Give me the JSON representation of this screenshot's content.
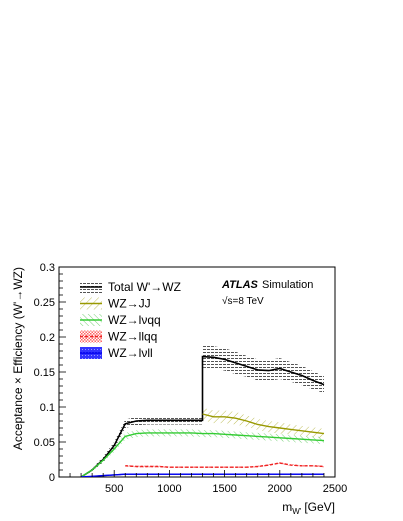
{
  "chart_data": {
    "type": "line",
    "title": "",
    "xlabel_main": "m",
    "xlabel_sub": "W'",
    "xlabel_unit": "[GeV]",
    "ylabel": "Acceptance × Efficiency (W'→WZ)",
    "xlim": [
      0,
      2500
    ],
    "ylim": [
      0,
      0.3
    ],
    "xticks": [
      500,
      1000,
      1500,
      2000,
      2500
    ],
    "xtick_labels": [
      "500",
      "1000",
      "1500",
      "2000",
      "2500"
    ],
    "yticks": [
      0,
      0.05,
      0.1,
      0.15,
      0.2,
      0.25,
      0.3
    ],
    "ytick_labels": [
      "0",
      "0.05",
      "0.1",
      "0.15",
      "0.2",
      "0.25",
      "0.3"
    ],
    "annotation": {
      "label": "ATLAS",
      "sublabel": "Simulation",
      "energy": "√s=8 TeV"
    },
    "legend_position": "top-left",
    "series": [
      {
        "name": "Total W'→WZ",
        "color": "#000000",
        "band": "#666666",
        "x": [
          200,
          300,
          400,
          500,
          600,
          700,
          800,
          900,
          1000,
          1100,
          1200,
          1300,
          1300,
          1400,
          1500,
          1600,
          1700,
          1800,
          1900,
          2000,
          2100,
          2200,
          2300,
          2400
        ],
        "y": [
          0,
          0.01,
          0.025,
          0.045,
          0.076,
          0.08,
          0.081,
          0.081,
          0.081,
          0.081,
          0.081,
          0.081,
          0.172,
          0.171,
          0.168,
          0.163,
          0.158,
          0.153,
          0.152,
          0.155,
          0.15,
          0.145,
          0.138,
          0.132
        ],
        "err": [
          0,
          0.002,
          0.004,
          0.005,
          0.006,
          0.006,
          0.006,
          0.006,
          0.006,
          0.006,
          0.006,
          0.006,
          0.016,
          0.016,
          0.016,
          0.016,
          0.015,
          0.015,
          0.015,
          0.015,
          0.014,
          0.014,
          0.013,
          0.012
        ]
      },
      {
        "name": "WZ→JJ",
        "color": "#999900",
        "band": "#b8b848",
        "x": [
          1300,
          1400,
          1500,
          1600,
          1700,
          1800,
          1900,
          2000,
          2100,
          2200,
          2300,
          2400
        ],
        "y": [
          0.09,
          0.086,
          0.086,
          0.084,
          0.08,
          0.075,
          0.072,
          0.07,
          0.068,
          0.066,
          0.064,
          0.062
        ],
        "err": [
          0.009,
          0.009,
          0.009,
          0.009,
          0.008,
          0.008,
          0.008,
          0.008,
          0.007,
          0.007,
          0.007,
          0.007
        ]
      },
      {
        "name": "WZ→lνqq",
        "color": "#33cc33",
        "band": "#66cc66",
        "x": [
          200,
          300,
          400,
          500,
          600,
          700,
          800,
          900,
          1000,
          1100,
          1200,
          1300,
          1400,
          1500,
          1600,
          1700,
          1800,
          1900,
          2000,
          2100,
          2200,
          2300,
          2400
        ],
        "y": [
          0,
          0.01,
          0.024,
          0.04,
          0.058,
          0.062,
          0.063,
          0.063,
          0.063,
          0.063,
          0.063,
          0.062,
          0.062,
          0.061,
          0.06,
          0.059,
          0.058,
          0.057,
          0.056,
          0.055,
          0.054,
          0.053,
          0.052
        ],
        "err": [
          0,
          0.002,
          0.003,
          0.004,
          0.005,
          0.005,
          0.005,
          0.005,
          0.005,
          0.005,
          0.005,
          0.005,
          0.005,
          0.005,
          0.005,
          0.005,
          0.005,
          0.005,
          0.005,
          0.005,
          0.005,
          0.005,
          0.005
        ]
      },
      {
        "name": "WZ→llqq",
        "color": "#ee2222",
        "band": "#ff6666",
        "x": [
          600,
          700,
          800,
          900,
          1000,
          1100,
          1200,
          1300,
          1400,
          1500,
          1600,
          1700,
          1800,
          1900,
          2000,
          2100,
          2200,
          2300,
          2400
        ],
        "y": [
          0.016,
          0.015,
          0.015,
          0.015,
          0.014,
          0.014,
          0.014,
          0.014,
          0.014,
          0.014,
          0.014,
          0.014,
          0.015,
          0.017,
          0.02,
          0.017,
          0.016,
          0.016,
          0.015
        ],
        "err": [
          0.001,
          0.001,
          0.001,
          0.001,
          0.001,
          0.001,
          0.001,
          0.001,
          0.001,
          0.001,
          0.001,
          0.001,
          0.001,
          0.001,
          0.001,
          0.001,
          0.001,
          0.001,
          0.001
        ]
      },
      {
        "name": "WZ→lνll",
        "color": "#0000ee",
        "band": "#3333ff",
        "x": [
          200,
          300,
          400,
          500,
          600,
          700,
          800,
          900,
          1000,
          1100,
          1200,
          1300,
          1400,
          1500,
          1600,
          1700,
          1800,
          1900,
          2000,
          2100,
          2200,
          2300,
          2400
        ],
        "y": [
          0,
          0.001,
          0.002,
          0.003,
          0.004,
          0.004,
          0.004,
          0.004,
          0.004,
          0.004,
          0.004,
          0.004,
          0.004,
          0.004,
          0.004,
          0.004,
          0.004,
          0.004,
          0.004,
          0.004,
          0.004,
          0.004,
          0.004
        ],
        "err": [
          0,
          0.0005,
          0.0008,
          0.001,
          0.001,
          0.001,
          0.001,
          0.001,
          0.001,
          0.001,
          0.001,
          0.001,
          0.001,
          0.001,
          0.001,
          0.001,
          0.001,
          0.001,
          0.001,
          0.001,
          0.001,
          0.001,
          0.001
        ]
      }
    ]
  }
}
